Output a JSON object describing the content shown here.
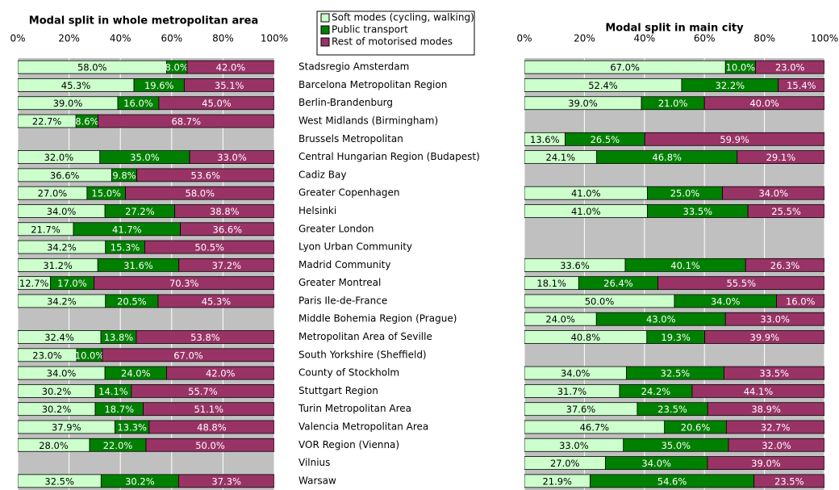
{
  "chart_data": [
    {
      "type": "stacked-bar-horizontal",
      "title": "Modal split in whole metropolitan area",
      "categories": [
        "Stadsregio Amsterdam",
        "Barcelona Metropolitan Region",
        "Berlin-Brandenburg",
        "West Midlands (Birmingham)",
        "Brussels Metropolitan",
        "Central Hungarian Region (Budapest)",
        "Cadiz Bay",
        "Greater Copenhagen",
        "Helsinki",
        "Greater London",
        "Lyon Urban Community",
        "Madrid Community",
        "Greater Montreal",
        "Paris Ile-de-France",
        "Middle Bohemia Region (Prague)",
        "Metropolitan Area of Seville",
        "South Yorkshire (Sheffield)",
        "County of Stockholm",
        "Stuttgart Region",
        "Turin Metropolitan Area",
        "Valencia Metropolitan Area",
        "VOR Region (Vienna)",
        "Vilnius",
        "Warsaw"
      ],
      "xlim": [
        0,
        100
      ],
      "xticks": [
        {
          "value": 0,
          "label": "0%"
        },
        {
          "value": 20,
          "label": "20%"
        },
        {
          "value": 40,
          "label": "40%"
        },
        {
          "value": 60,
          "label": "60%"
        },
        {
          "value": 80,
          "label": "80%"
        },
        {
          "value": 100,
          "label": "100%"
        }
      ],
      "grid": true,
      "series": [
        {
          "name": "Soft modes (cycling, walking)",
          "color": "#ccffcc",
          "values": [
            58.0,
            45.3,
            39.0,
            22.7,
            null,
            32.0,
            36.6,
            27.0,
            34.0,
            21.7,
            34.2,
            31.2,
            12.7,
            34.2,
            null,
            32.4,
            23.0,
            34.0,
            30.2,
            30.2,
            37.9,
            28.0,
            null,
            32.5
          ],
          "value_labels": [
            "58.0%",
            "45.3%",
            "39.0%",
            "22.7%",
            null,
            "32.0%",
            "36.6%",
            "27.0%",
            "34.0%",
            "21.7%",
            "34.2%",
            "31.2%",
            "12.7%",
            "34.2%",
            null,
            "32.4%",
            "23.0%",
            "34.0%",
            "30.2%",
            "30.2%",
            "37.9%",
            "28.0%",
            null,
            "32.5%"
          ]
        },
        {
          "name": "Public transport",
          "color": "#008000",
          "values": [
            8.0,
            19.6,
            16.0,
            8.6,
            null,
            35.0,
            9.8,
            15.0,
            27.2,
            41.7,
            15.3,
            31.6,
            17.0,
            20.5,
            null,
            13.8,
            10.0,
            24.0,
            14.1,
            18.7,
            13.3,
            22.0,
            null,
            30.2
          ],
          "value_labels": [
            "8.0%",
            "19.6%",
            "16.0%",
            "8.6%",
            null,
            "35.0%",
            "9.8%",
            "15.0%",
            "27.2%",
            "41.7%",
            "15.3%",
            "31.6%",
            "17.0%",
            "20.5%",
            null,
            "13.8%",
            "10.0%",
            "24.0%",
            "14.1%",
            "18.7%",
            "13.3%",
            "22.0%",
            null,
            "30.2%"
          ]
        },
        {
          "name": "Rest of motorised modes",
          "color": "#993366",
          "values": [
            42.0,
            35.1,
            45.0,
            68.7,
            null,
            33.0,
            53.6,
            58.0,
            38.8,
            36.6,
            50.5,
            37.2,
            70.3,
            45.3,
            null,
            53.8,
            67.0,
            42.0,
            55.7,
            51.1,
            48.8,
            50.0,
            null,
            37.3
          ],
          "value_labels": [
            "42.0%",
            "35.1%",
            "45.0%",
            "68.7%",
            null,
            "33.0%",
            "53.6%",
            "58.0%",
            "38.8%",
            "36.6%",
            "50.5%",
            "37.2%",
            "70.3%",
            "45.3%",
            null,
            "53.8%",
            "67.0%",
            "42.0%",
            "55.7%",
            "51.1%",
            "48.8%",
            "50.0%",
            null,
            "37.3%"
          ]
        }
      ]
    },
    {
      "type": "stacked-bar-horizontal",
      "title": "Modal split in main city",
      "xlim": [
        0,
        100
      ],
      "xticks": [
        {
          "value": 0,
          "label": "0%"
        },
        {
          "value": 20,
          "label": "20%"
        },
        {
          "value": 40,
          "label": "40%"
        },
        {
          "value": 60,
          "label": "60%"
        },
        {
          "value": 80,
          "label": "80%"
        },
        {
          "value": 100,
          "label": "100%"
        }
      ],
      "grid": true,
      "series": [
        {
          "color": "#ccffcc",
          "values": [
            67.0,
            52.4,
            39.0,
            null,
            13.6,
            24.1,
            null,
            41.0,
            41.0,
            null,
            null,
            33.6,
            18.1,
            50.0,
            24.0,
            40.8,
            null,
            34.0,
            31.7,
            37.6,
            46.7,
            33.0,
            27.0,
            21.9
          ],
          "value_labels": [
            "67.0%",
            "52.4%",
            "39.0%",
            null,
            "13.6%",
            "24.1%",
            null,
            "41.0%",
            "41.0%",
            null,
            null,
            "33.6%",
            "18.1%",
            "50.0%",
            "24.0%",
            "40.8%",
            null,
            "34.0%",
            "31.7%",
            "37.6%",
            "46.7%",
            "33.0%",
            "27.0%",
            "21.9%"
          ]
        },
        {
          "color": "#008000",
          "values": [
            10.0,
            32.2,
            21.0,
            null,
            26.5,
            46.8,
            null,
            25.0,
            33.5,
            null,
            null,
            40.1,
            26.4,
            34.0,
            43.0,
            19.3,
            null,
            32.5,
            24.2,
            23.5,
            20.6,
            35.0,
            34.0,
            54.6
          ],
          "value_labels": [
            "10.0%",
            "32.2%",
            "21.0%",
            null,
            "26.5%",
            "46.8%",
            null,
            "25.0%",
            "33.5%",
            null,
            null,
            "40.1%",
            "26.4%",
            "34.0%",
            "43.0%",
            "19.3%",
            null,
            "32.5%",
            "24.2%",
            "23.5%",
            "20.6%",
            "35.0%",
            "34.0%",
            "54.6%"
          ]
        },
        {
          "color": "#993366",
          "values": [
            23.0,
            15.4,
            40.0,
            null,
            59.9,
            29.1,
            null,
            34.0,
            25.5,
            null,
            null,
            26.3,
            55.5,
            16.0,
            33.0,
            39.9,
            null,
            33.5,
            44.1,
            38.9,
            32.7,
            32.0,
            39.0,
            23.5
          ],
          "value_labels": [
            "23.0%",
            "15.4%",
            "40.0%",
            null,
            "59.9%",
            "29.1%",
            null,
            "34.0%",
            "25.5%",
            null,
            null,
            "26.3%",
            "55.5%",
            "16.0%",
            "33.0%",
            "39.9%",
            null,
            "33.5%",
            "44.1%",
            "38.9%",
            "32.7%",
            "32.0%",
            "39.0%",
            "23.5%"
          ]
        }
      ]
    }
  ]
}
